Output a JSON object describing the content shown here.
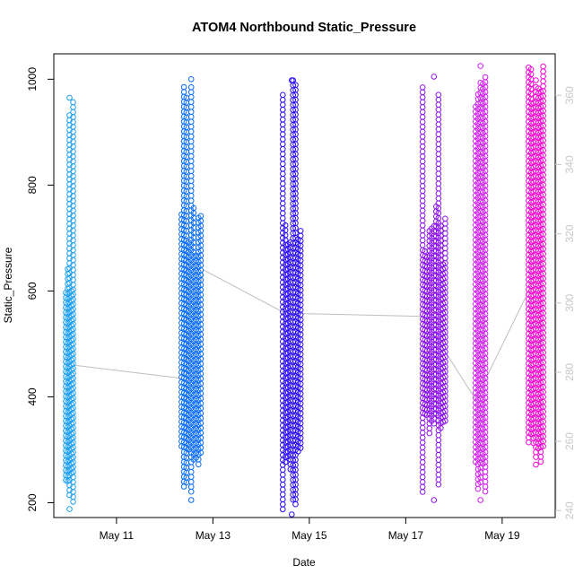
{
  "chart_data": {
    "type": "scatter",
    "title": "ATOM4 Northbound Static_Pressure",
    "xlabel": "Date",
    "ylabel": "Static_Pressure",
    "x_unit": "days (May)",
    "xlim": [
      9.7,
      20.1
    ],
    "ylim": [
      172,
      1048
    ],
    "y2lim": [
      238,
      372
    ],
    "x_ticks": [
      {
        "value": 11,
        "label": "May 11"
      },
      {
        "value": 13,
        "label": "May 13"
      },
      {
        "value": 15,
        "label": "May 15"
      },
      {
        "value": 17,
        "label": "May 17"
      },
      {
        "value": 19,
        "label": "May 19"
      }
    ],
    "y_ticks": [
      200,
      400,
      600,
      800,
      1000
    ],
    "y2_ticks": [
      240,
      260,
      280,
      300,
      320,
      340,
      360
    ],
    "grid": false,
    "legend": "none",
    "series": [
      {
        "x_start": 9.95,
        "x_end": 10.1,
        "y_min": 188,
        "y_max": 965,
        "color": "#1e9ff0",
        "dense_from": 200,
        "dense_to": 620
      },
      {
        "x_start": 12.35,
        "x_end": 12.75,
        "y_min": 205,
        "y_max": 1000,
        "color": "#0a6cf7",
        "dense_from": 250,
        "dense_to": 700
      },
      {
        "x_start": 14.45,
        "x_end": 14.82,
        "y_min": 178,
        "y_max": 998,
        "color": "#2a0bf8",
        "dense_from": 260,
        "dense_to": 700
      },
      {
        "x_start": 17.35,
        "x_end": 17.82,
        "y_min": 205,
        "y_max": 1005,
        "color": "#8c14ec",
        "dense_from": 330,
        "dense_to": 700
      },
      {
        "x_start": 18.45,
        "x_end": 18.65,
        "y_min": 205,
        "y_max": 1025,
        "color": "#d21ef2",
        "dense_from": 220,
        "dense_to": 980
      },
      {
        "x_start": 19.55,
        "x_end": 19.85,
        "y_min": 272,
        "y_max": 998,
        "color": "#f507d3",
        "dense_from": 272,
        "dense_to": 1000
      }
    ],
    "connector_line": {
      "color": "#bfbfbf",
      "points": [
        {
          "x": 10.1,
          "y": 460
        },
        {
          "x": 12.35,
          "y": 435
        },
        {
          "x": 12.8,
          "y": 640
        },
        {
          "x": 14.5,
          "y": 558
        },
        {
          "x": 17.35,
          "y": 552
        },
        {
          "x": 18.45,
          "y": 395
        },
        {
          "x": 19.55,
          "y": 600
        }
      ]
    }
  }
}
